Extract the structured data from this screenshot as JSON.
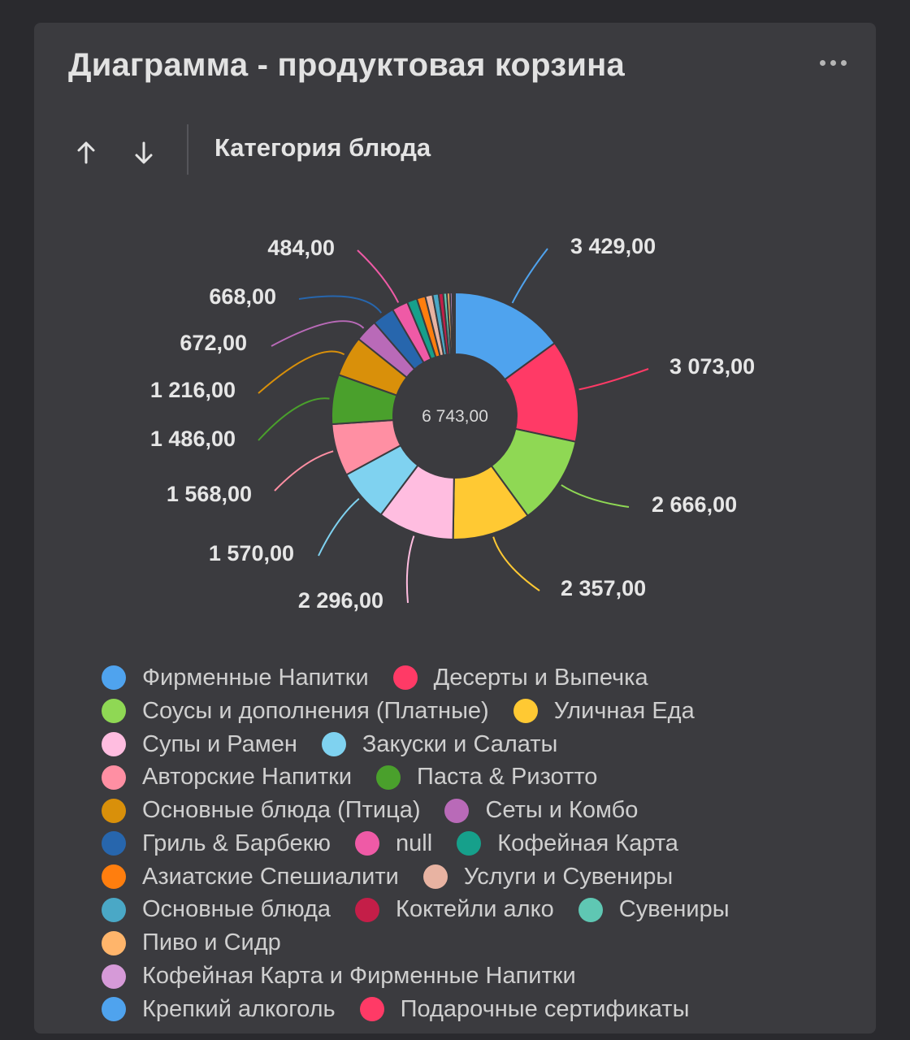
{
  "header": {
    "title": "Диаграмма - продуктовая корзина",
    "more_icon": "more-horizontal-icon"
  },
  "toolbar": {
    "sort_asc_icon": "arrow-up-icon",
    "sort_desc_icon": "arrow-down-icon",
    "dimension_label": "Категория блюда"
  },
  "chart_data": {
    "type": "pie",
    "variant": "donut",
    "center_label": "6 743,00",
    "legend_placement": "bottom",
    "slices": [
      {
        "name": "Фирменные Напитки",
        "value": 3429,
        "label": "3 429,00",
        "color": "#4fa3ee"
      },
      {
        "name": "Десерты и Выпечка",
        "value": 3073,
        "label": "3 073,00",
        "color": "#ff3a66"
      },
      {
        "name": "Соусы и дополнения (Платные)",
        "value": 2666,
        "label": "2 666,00",
        "color": "#8fd854"
      },
      {
        "name": "Уличная Еда",
        "value": 2357,
        "label": "2 357,00",
        "color": "#ffc933"
      },
      {
        "name": "Супы и Рамен",
        "value": 2296,
        "label": "2 296,00",
        "color": "#ffbde0"
      },
      {
        "name": "Закуски и Салаты",
        "value": 1570,
        "label": "1 570,00",
        "color": "#7fd2f0"
      },
      {
        "name": "Авторские Напитки",
        "value": 1568,
        "label": "1 568,00",
        "color": "#ff8fa3"
      },
      {
        "name": "Паста & Ризотто",
        "value": 1486,
        "label": "1 486,00",
        "color": "#4aa02c"
      },
      {
        "name": "Основные блюда (Птица)",
        "value": 1216,
        "label": "1 216,00",
        "color": "#d9900a"
      },
      {
        "name": "Сеты и Комбо",
        "value": 672,
        "label": "672,00",
        "color": "#b96ab8"
      },
      {
        "name": "Гриль & Барбекю",
        "value": 668,
        "label": "668,00",
        "color": "#2766ad"
      },
      {
        "name": "null",
        "value": 484,
        "label": "484,00",
        "color": "#ef5aa6"
      },
      {
        "name": "Кофейная Карта",
        "value": 300,
        "label": "",
        "color": "#16a08b"
      },
      {
        "name": "Азиатские Спешиалити",
        "value": 260,
        "label": "",
        "color": "#ff7e0e"
      },
      {
        "name": "Услуги и Сувениры",
        "value": 220,
        "label": "",
        "color": "#e8b3a2"
      },
      {
        "name": "Основные блюда",
        "value": 180,
        "label": "",
        "color": "#4aa8c6"
      },
      {
        "name": "Коктейли алко",
        "value": 140,
        "label": "",
        "color": "#c41e48"
      },
      {
        "name": "Сувениры",
        "value": 110,
        "label": "",
        "color": "#5fc7b3"
      },
      {
        "name": "Пиво и Сидр",
        "value": 90,
        "label": "",
        "color": "#ffb56b"
      },
      {
        "name": "Кофейная Карта и Фирменные Напитки",
        "value": 70,
        "label": "",
        "color": "#d69ad8"
      },
      {
        "name": "Крепкий алкоголь",
        "value": 50,
        "label": "",
        "color": "#4fa3ee"
      },
      {
        "name": "Подарочные сертификаты",
        "value": 30,
        "label": "",
        "color": "#ff3a66"
      }
    ]
  }
}
